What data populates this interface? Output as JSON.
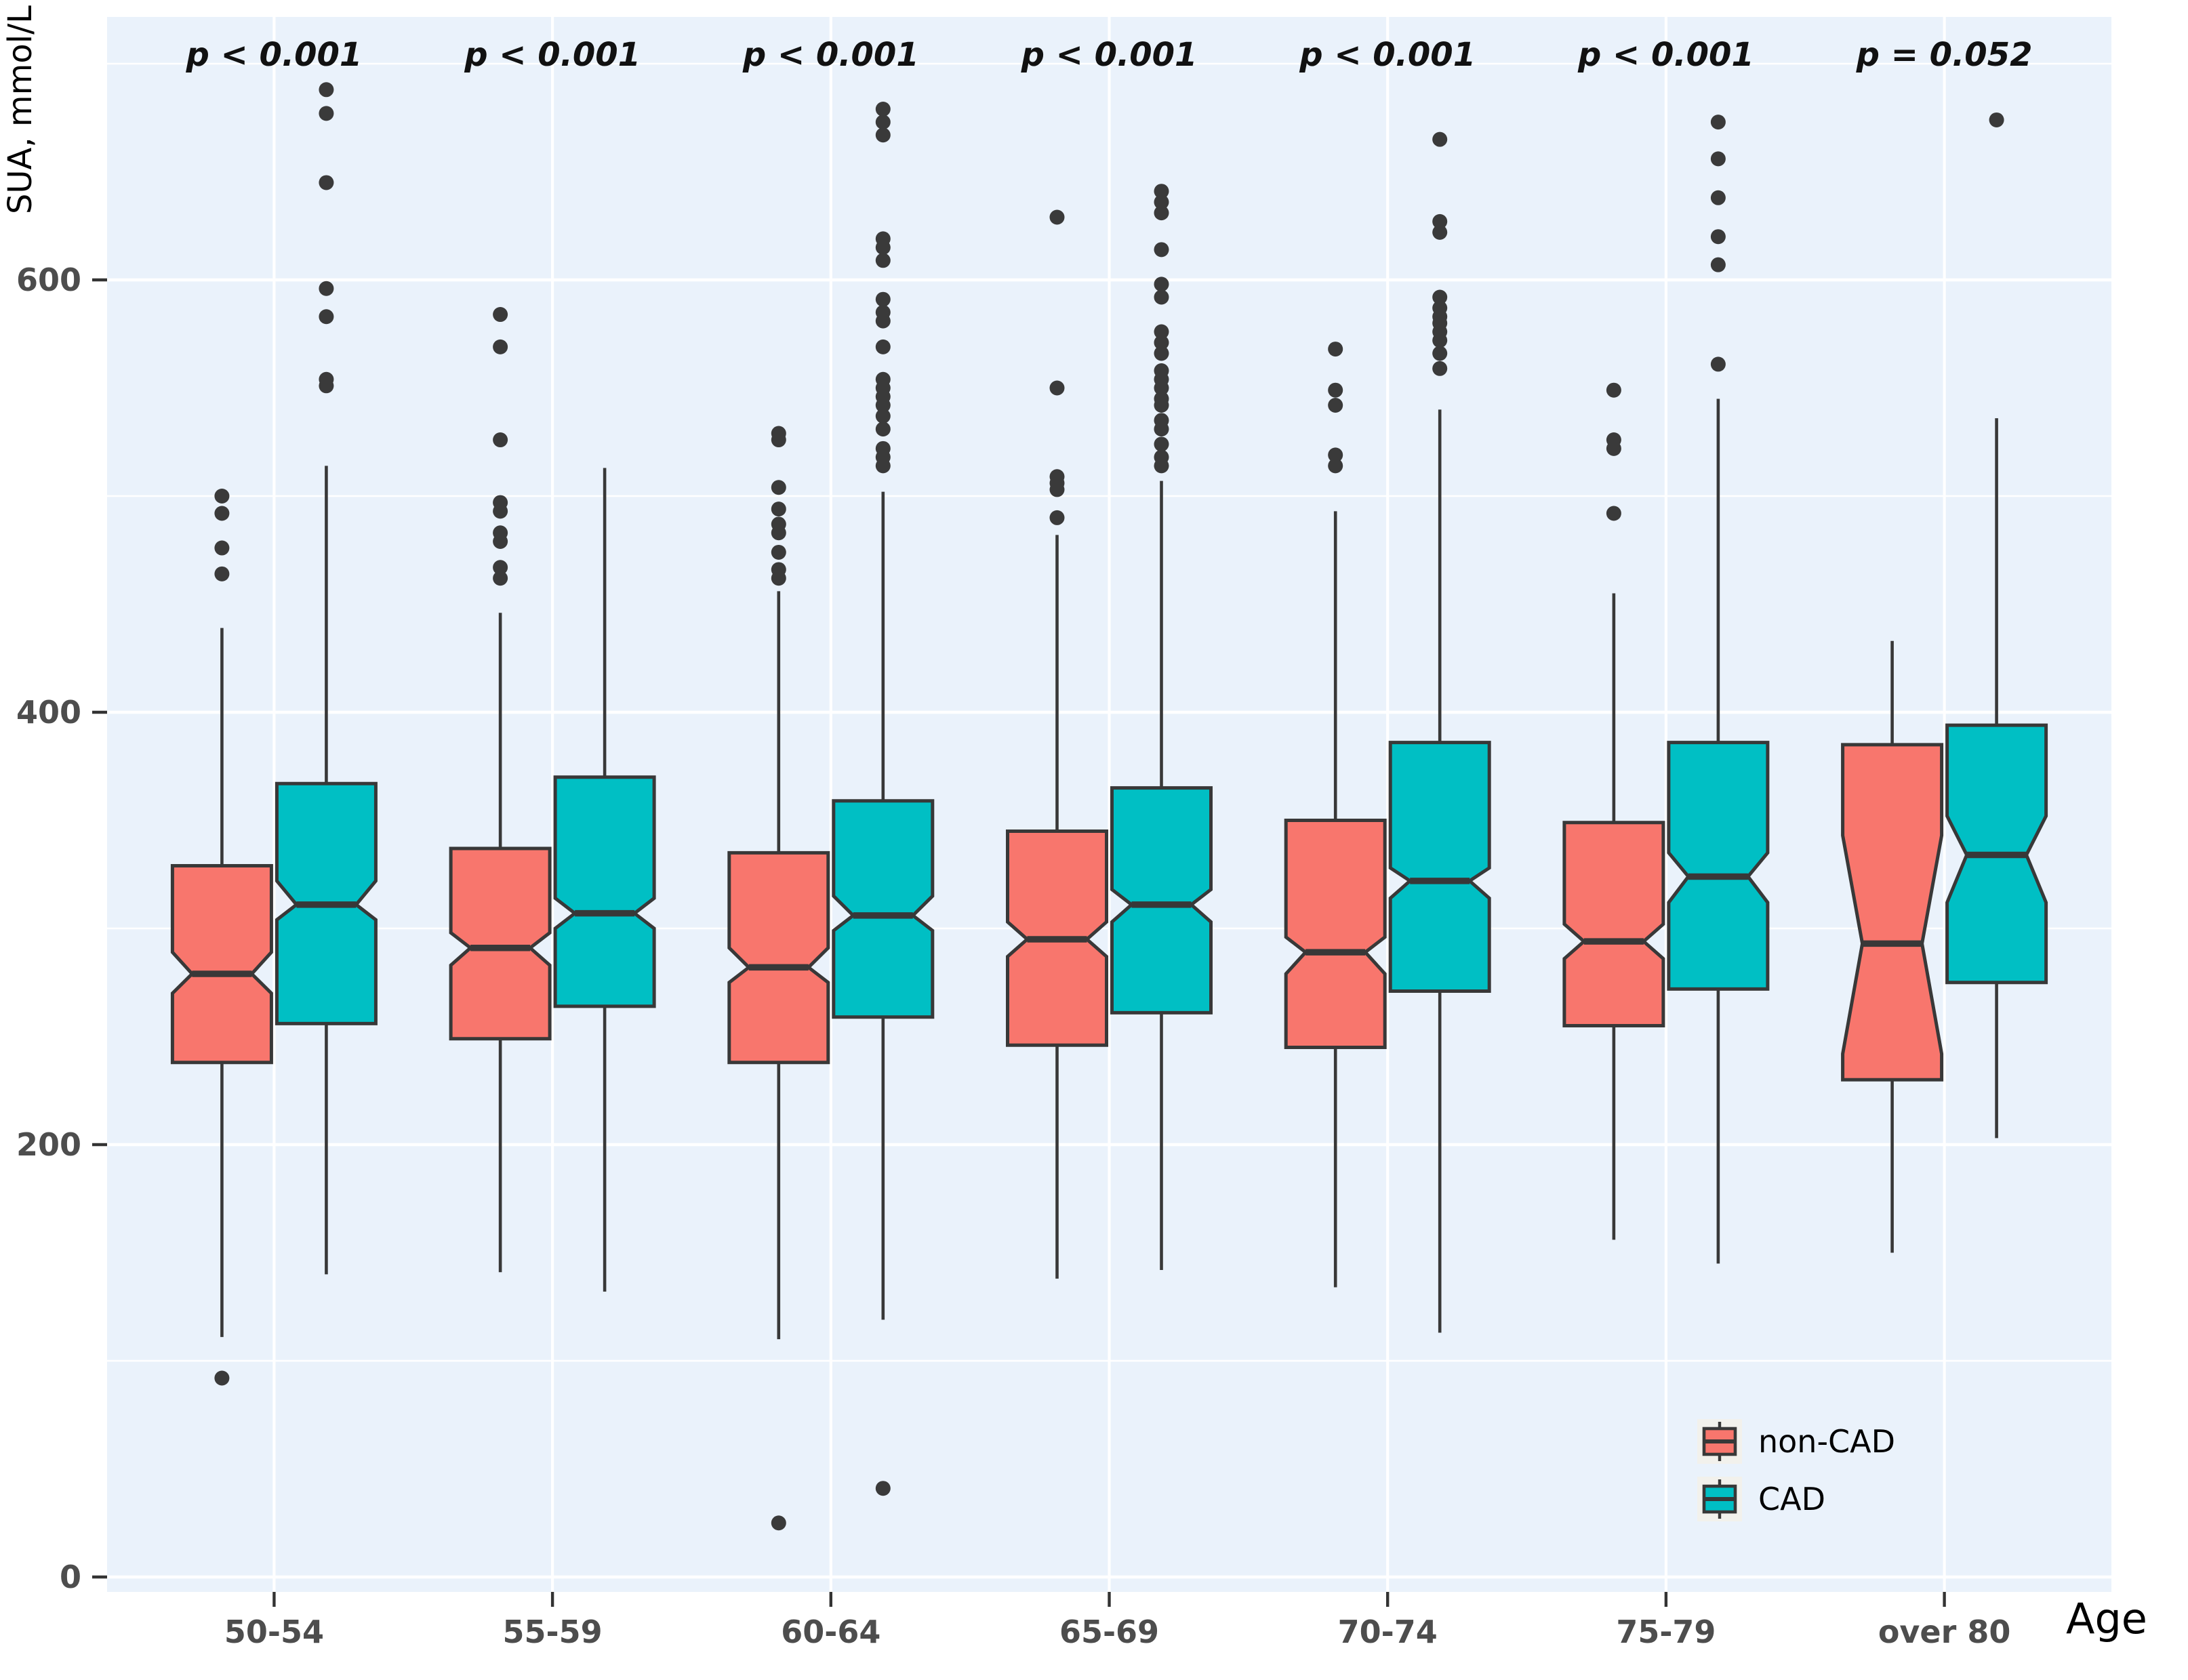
{
  "figure": {
    "y_axis_title": "SUA, mmol/L",
    "x_axis_title": "Age",
    "panel_bg_color": "#EAF2FB",
    "grid_color": "#FFFFFF",
    "box_stroke_color": "#383838",
    "outlier_color": "#3A3A3A",
    "axis_text_color": "#4d4d4d",
    "legend_key_bg": "#F2F1EC"
  },
  "legend": {
    "position": "bottom-right-inside-panel",
    "items": [
      {
        "label": "non-CAD",
        "color": "#F8766D"
      },
      {
        "label": "CAD",
        "color": "#00BFC4"
      }
    ]
  },
  "chart_data": {
    "type": "boxplot",
    "subtype": "notched-dodged-pairs",
    "title": "",
    "xlabel": "Age",
    "ylabel": "SUA, mmol/L",
    "categories": [
      "50-54",
      "55-59",
      "60-64",
      "65-69",
      "70-74",
      "75-79",
      "over 80"
    ],
    "p_labels": [
      "p < 0.001",
      "p < 0.001",
      "p < 0.001",
      "p < 0.001",
      "p < 0.001",
      "p < 0.001",
      "p = 0.052"
    ],
    "ylim": [
      -7,
      721
    ],
    "yticks": [
      "0",
      "200",
      "400",
      "600"
    ],
    "ytick_values": [
      0,
      200,
      400,
      600
    ],
    "minor_gridline_values": [
      100,
      300,
      500,
      700
    ],
    "grid": "white-on-lightblue, vertical major line at each category center",
    "legend_position": "inside lower right",
    "series": [
      {
        "name": "non-CAD",
        "color": "#F8766D",
        "boxes": [
          {
            "category": "50-54",
            "whisker_low": 111,
            "q1": 238,
            "median": 279,
            "q3": 329,
            "whisker_high": 439,
            "notch_low": 270,
            "notch_high": 289,
            "outliers_high": [
              500,
              492,
              476,
              464
            ],
            "outliers_low": [
              92
            ]
          },
          {
            "category": "55-59",
            "whisker_low": 141,
            "q1": 249,
            "median": 291,
            "q3": 337,
            "whisker_high": 446,
            "notch_low": 283,
            "notch_high": 298,
            "outliers_high": [
              584,
              569,
              526,
              497,
              493,
              483,
              479,
              467,
              462
            ],
            "outliers_low": []
          },
          {
            "category": "60-64",
            "whisker_low": 110,
            "q1": 238,
            "median": 282,
            "q3": 335,
            "whisker_high": 456,
            "notch_low": 275,
            "notch_high": 291,
            "outliers_high": [
              529,
              526,
              504,
              494,
              487,
              483,
              474,
              466,
              462
            ],
            "outliers_low": [
              25
            ]
          },
          {
            "category": "65-69",
            "whisker_low": 138,
            "q1": 246,
            "median": 295,
            "q3": 345,
            "whisker_high": 482,
            "notch_low": 287,
            "notch_high": 303,
            "outliers_high": [
              629,
              550,
              509,
              506,
              503,
              490
            ],
            "outliers_low": []
          },
          {
            "category": "70-74",
            "whisker_low": 134,
            "q1": 245,
            "median": 289,
            "q3": 350,
            "whisker_high": 493,
            "notch_low": 279,
            "notch_high": 296,
            "outliers_high": [
              568,
              549,
              542,
              519,
              514
            ],
            "outliers_low": []
          },
          {
            "category": "75-79",
            "whisker_low": 156,
            "q1": 255,
            "median": 294,
            "q3": 349,
            "whisker_high": 455,
            "notch_low": 286,
            "notch_high": 302,
            "outliers_high": [
              549,
              526,
              522,
              492
            ],
            "outliers_low": []
          },
          {
            "category": "over 80",
            "whisker_low": 150,
            "q1": 230,
            "median": 293,
            "q3": 385,
            "whisker_high": 433,
            "notch_low": 242,
            "notch_high": 343,
            "outliers_high": [],
            "outliers_low": []
          }
        ]
      },
      {
        "name": "CAD",
        "color": "#00BFC4",
        "boxes": [
          {
            "category": "50-54",
            "whisker_low": 140,
            "q1": 256,
            "median": 311,
            "q3": 367,
            "whisker_high": 514,
            "notch_low": 304,
            "notch_high": 322,
            "outliers_high": [
              688,
              677,
              645,
              596,
              583,
              554,
              551
            ],
            "outliers_low": []
          },
          {
            "category": "55-59",
            "whisker_low": 132,
            "q1": 264,
            "median": 307,
            "q3": 370,
            "whisker_high": 513,
            "notch_low": 300,
            "notch_high": 314,
            "outliers_high": [],
            "outliers_low": []
          },
          {
            "category": "60-64",
            "whisker_low": 119,
            "q1": 259,
            "median": 306,
            "q3": 359,
            "whisker_high": 502,
            "notch_low": 299,
            "notch_high": 315,
            "outliers_high": [
              679,
              673,
              667,
              619,
              615,
              609,
              591,
              585,
              581,
              569,
              554,
              550,
              546,
              542,
              537,
              531,
              522,
              518,
              514
            ],
            "outliers_low": [
              41
            ]
          },
          {
            "category": "65-69",
            "whisker_low": 142,
            "q1": 261,
            "median": 311,
            "q3": 365,
            "whisker_high": 507,
            "notch_low": 303,
            "notch_high": 318,
            "outliers_high": [
              641,
              636,
              631,
              614,
              598,
              592,
              576,
              571,
              566,
              558,
              554,
              550,
              545,
              542,
              535,
              531,
              524,
              518,
              514
            ],
            "outliers_low": []
          },
          {
            "category": "70-74",
            "whisker_low": 113,
            "q1": 271,
            "median": 322,
            "q3": 386,
            "whisker_high": 540,
            "notch_low": 314,
            "notch_high": 328,
            "outliers_high": [
              665,
              627,
              622,
              592,
              587,
              583,
              580,
              576,
              572,
              566,
              559
            ],
            "outliers_low": []
          },
          {
            "category": "75-79",
            "whisker_low": 145,
            "q1": 272,
            "median": 324,
            "q3": 386,
            "whisker_high": 545,
            "notch_low": 312,
            "notch_high": 335,
            "outliers_high": [
              673,
              656,
              638,
              620,
              607,
              561
            ],
            "outliers_low": []
          },
          {
            "category": "over 80",
            "whisker_low": 203,
            "q1": 275,
            "median": 334,
            "q3": 394,
            "whisker_high": 536,
            "notch_low": 312,
            "notch_high": 352,
            "outliers_high": [
              674
            ],
            "outliers_low": []
          }
        ]
      }
    ]
  }
}
